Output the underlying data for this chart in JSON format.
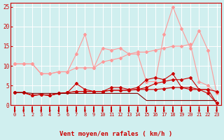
{
  "x": [
    0,
    1,
    2,
    3,
    4,
    5,
    6,
    7,
    8,
    9,
    10,
    11,
    12,
    13,
    14,
    15,
    16,
    17,
    18,
    19,
    20,
    21,
    22,
    23
  ],
  "series": [
    {
      "y": [
        10.5,
        10.5,
        10.5,
        8.0,
        8.0,
        8.5,
        8.5,
        13.0,
        18.0,
        9.5,
        14.5,
        14.0,
        14.5,
        13.0,
        13.0,
        6.0,
        6.0,
        18.0,
        25.0,
        19.5,
        14.5,
        19.0,
        14.0,
        3.0
      ],
      "color": "#ff9999",
      "lw": 0.8,
      "marker": "D",
      "ms": 2.0,
      "ls": "-"
    },
    {
      "y": [
        10.5,
        10.5,
        10.5,
        8.0,
        8.0,
        8.5,
        8.5,
        9.5,
        9.5,
        9.5,
        11.0,
        11.5,
        12.0,
        13.0,
        13.5,
        13.5,
        14.0,
        14.5,
        15.0,
        15.0,
        15.5,
        6.0,
        5.0,
        3.0
      ],
      "color": "#ff9999",
      "lw": 0.8,
      "marker": "D",
      "ms": 2.0,
      "ls": "-"
    },
    {
      "y": [
        3.2,
        3.2,
        2.5,
        2.7,
        2.5,
        3.0,
        3.2,
        5.5,
        4.0,
        3.5,
        3.5,
        4.5,
        4.5,
        4.0,
        4.5,
        6.5,
        7.0,
        6.5,
        8.0,
        4.5,
        4.0,
        4.0,
        3.0,
        0.5
      ],
      "color": "#cc0000",
      "lw": 0.8,
      "marker": "D",
      "ms": 2.0,
      "ls": "-"
    },
    {
      "y": [
        3.2,
        3.2,
        2.5,
        2.7,
        2.5,
        3.0,
        3.2,
        3.5,
        3.5,
        3.5,
        3.5,
        3.8,
        3.8,
        3.8,
        4.0,
        4.5,
        5.5,
        6.0,
        6.5,
        6.5,
        7.0,
        4.0,
        4.0,
        0.5
      ],
      "color": "#cc0000",
      "lw": 0.8,
      "marker": "D",
      "ms": 2.0,
      "ls": "-"
    },
    {
      "y": [
        3.2,
        3.2,
        2.5,
        2.7,
        2.5,
        3.0,
        3.2,
        3.5,
        3.5,
        3.5,
        3.5,
        3.8,
        3.8,
        3.8,
        4.0,
        4.0,
        4.0,
        4.2,
        4.5,
        4.5,
        4.5,
        4.0,
        4.0,
        3.5
      ],
      "color": "#cc0000",
      "lw": 0.8,
      "marker": "D",
      "ms": 2.0,
      "ls": "-"
    },
    {
      "y": [
        3.2,
        3.2,
        3.0,
        3.0,
        3.0,
        3.0,
        3.0,
        3.0,
        3.0,
        3.0,
        3.0,
        3.0,
        3.0,
        3.0,
        3.0,
        1.2,
        1.2,
        1.2,
        1.2,
        1.2,
        1.2,
        1.2,
        1.2,
        1.2
      ],
      "color": "#880000",
      "lw": 0.8,
      "marker": null,
      "ms": 0,
      "ls": "-"
    }
  ],
  "xlim": [
    -0.5,
    23.5
  ],
  "ylim": [
    0,
    26
  ],
  "yticks": [
    0,
    5,
    10,
    15,
    20,
    25
  ],
  "xticks": [
    0,
    1,
    2,
    3,
    4,
    5,
    6,
    7,
    8,
    9,
    10,
    11,
    12,
    13,
    14,
    15,
    16,
    17,
    18,
    19,
    20,
    21,
    22,
    23
  ],
  "xlabel": "Vent moyen/en rafales ( km/h )",
  "bg_color": "#d0efef",
  "grid_color": "#ffffff",
  "axis_color": "#cc0000",
  "tick_arrow_color": "#cc0000",
  "xlabel_color": "#cc0000",
  "ytick_color": "#cc0000",
  "xtick_color": "#cc0000"
}
